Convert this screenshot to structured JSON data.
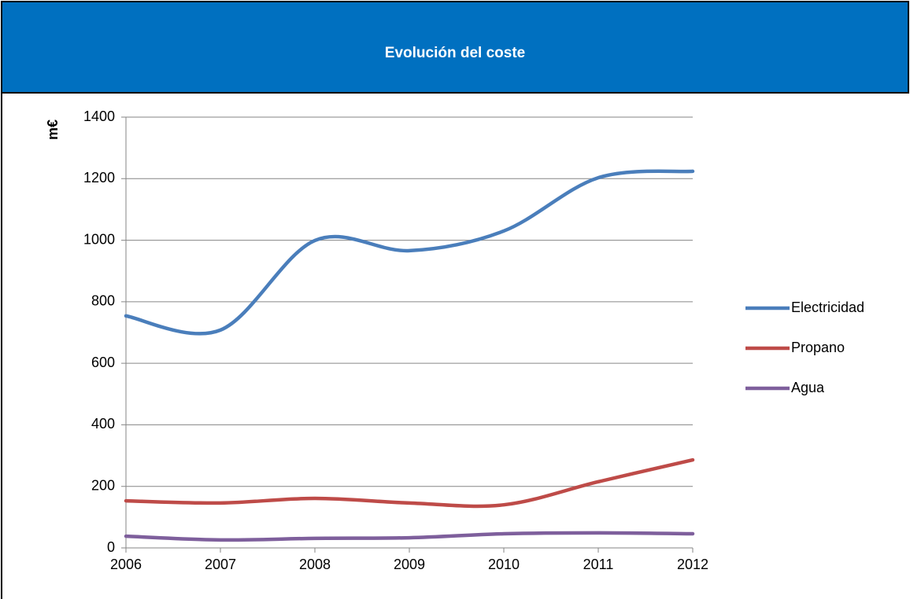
{
  "chart_data": {
    "type": "line",
    "title": "Evolución del coste",
    "ylabel": "m€",
    "x": [
      2006,
      2007,
      2008,
      2009,
      2010,
      2011,
      2012
    ],
    "xlim": [
      2006,
      2012
    ],
    "xticks": [
      2006,
      2007,
      2008,
      2009,
      2010,
      2011,
      2012
    ],
    "ylim": [
      0,
      1400
    ],
    "yticks": [
      0,
      200,
      400,
      600,
      800,
      1000,
      1200,
      1400
    ],
    "grid": true,
    "smooth": true,
    "legend": "right",
    "series": [
      {
        "name": "Electricidad",
        "color": "#4a7ebb",
        "values": [
          754,
          708,
          999,
          966,
          1030,
          1203,
          1224
        ]
      },
      {
        "name": "Propano",
        "color": "#be4b48",
        "values": [
          153,
          146,
          161,
          146,
          140,
          215,
          286
        ]
      },
      {
        "name": "Agua",
        "color": "#7e5f9c",
        "values": [
          38,
          26,
          31,
          33,
          46,
          49,
          46
        ]
      }
    ]
  }
}
